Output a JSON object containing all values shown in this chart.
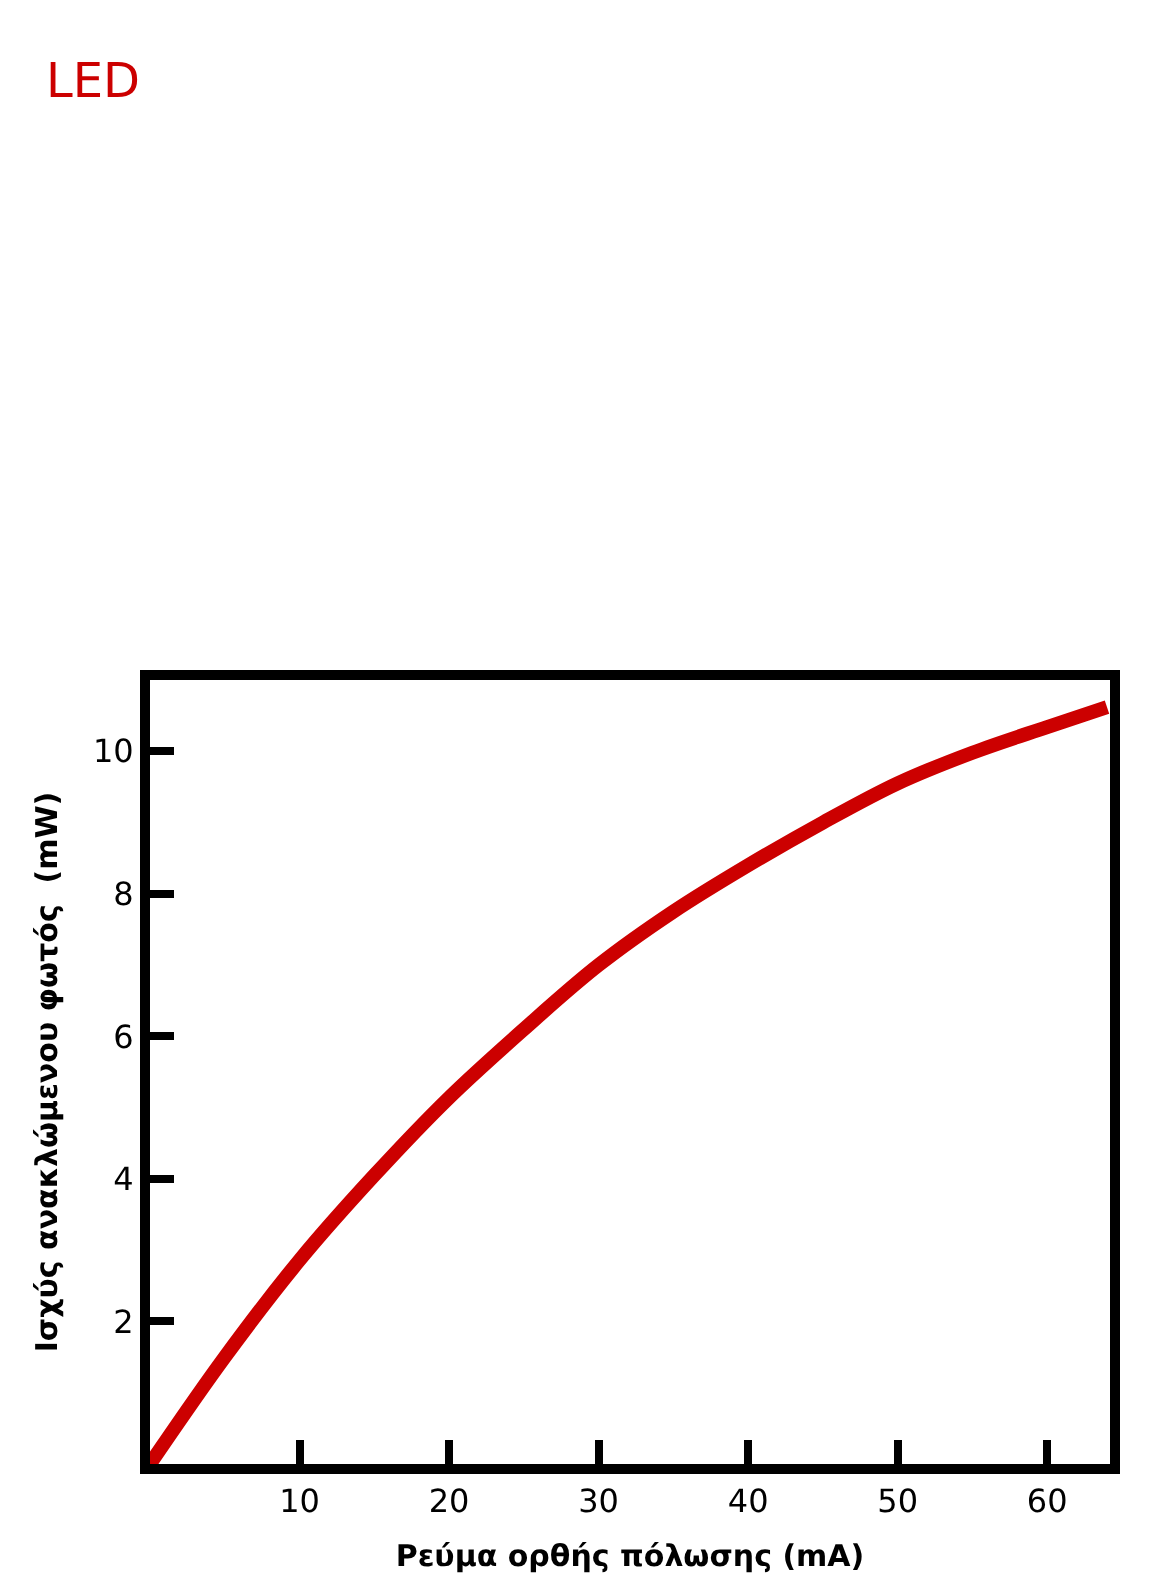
{
  "chart_data": {
    "type": "line",
    "title": "LED",
    "xlabel": "Ρεύμα ορθής πόλωσης (mA)",
    "ylabel": "Ισχύς ανακλώμενου φωτός  (mW)",
    "x": [
      0,
      5,
      10,
      15,
      20,
      25,
      30,
      35,
      40,
      45,
      50,
      55,
      60,
      64
    ],
    "series": [
      {
        "color": "#cc0000",
        "values": [
          0,
          1.5,
          2.86,
          4.05,
          5.14,
          6.1,
          7.0,
          7.75,
          8.4,
          9.0,
          9.55,
          9.98,
          10.34,
          10.62
        ]
      }
    ],
    "xlim": [
      0,
      64.2
    ],
    "ylim": [
      0,
      11
    ],
    "xticks": [
      10,
      20,
      30,
      40,
      50,
      60
    ],
    "yticks": [
      2,
      4,
      6,
      8,
      10
    ],
    "marker": "none",
    "line_style": "solid"
  }
}
